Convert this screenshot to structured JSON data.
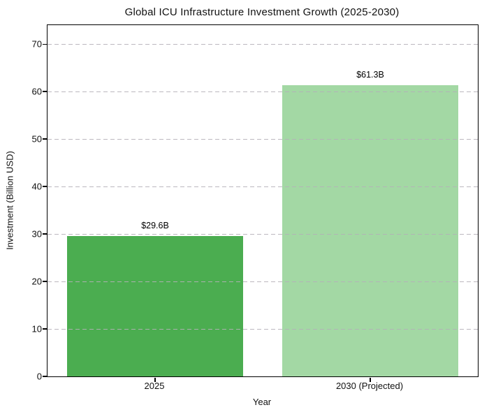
{
  "chart_data": {
    "type": "bar",
    "title": "Global ICU Infrastructure Investment Growth (2025-2030)",
    "xlabel": "Year",
    "ylabel": "Investment (Billion USD)",
    "categories": [
      "2025",
      "2030 (Projected)"
    ],
    "values": [
      29.6,
      61.3
    ],
    "value_labels": [
      "$29.6B",
      "$61.3B"
    ],
    "bar_colors": [
      "#4bad50",
      "#a3d8a4"
    ],
    "ylim": [
      0,
      74
    ],
    "yticks": [
      0,
      10,
      20,
      30,
      40,
      50,
      60,
      70
    ],
    "grid": "horizontal-dashed-on-top",
    "grid_color": "#b4b0b8",
    "legend": "none",
    "background_color": "#ffffff",
    "spine_color": "#000000"
  }
}
